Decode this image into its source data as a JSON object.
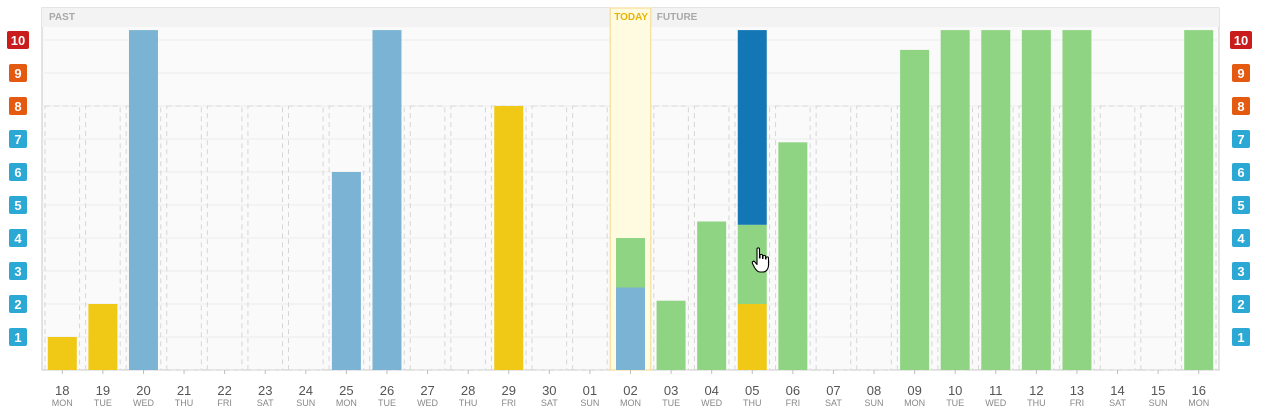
{
  "chart_data": {
    "type": "bar",
    "sections": {
      "past": "PAST",
      "today": "TODAY",
      "future": "FUTURE"
    },
    "today_index": 14,
    "ylim": [
      0,
      10.3
    ],
    "grid": true,
    "y_ticks": [
      {
        "label": "1",
        "value": 1,
        "color": "#2ba8d3"
      },
      {
        "label": "2",
        "value": 2,
        "color": "#2ba8d3"
      },
      {
        "label": "3",
        "value": 3,
        "color": "#2ba8d3"
      },
      {
        "label": "4",
        "value": 4,
        "color": "#2ba8d3"
      },
      {
        "label": "5",
        "value": 5,
        "color": "#2ba8d3"
      },
      {
        "label": "6",
        "value": 6,
        "color": "#2ba8d3"
      },
      {
        "label": "7",
        "value": 7,
        "color": "#2ba8d3"
      },
      {
        "label": "8",
        "value": 8,
        "color": "#e35a10"
      },
      {
        "label": "9",
        "value": 9,
        "color": "#e35a10"
      },
      {
        "label": "10",
        "value": 10,
        "color": "#c91d1d"
      }
    ],
    "colors": {
      "yellow": "#f0c816",
      "lightblue": "#7ab3d3",
      "green": "#8fd482",
      "darkblue": "#1277b4",
      "capacity": "#d6d6d6",
      "today_fill": "#fffbe0",
      "today_border": "#f5d68a"
    },
    "capacity": 8,
    "days": [
      {
        "num": "18",
        "name": "MON",
        "stack": [
          {
            "v": 1,
            "c": "yellow"
          }
        ]
      },
      {
        "num": "19",
        "name": "TUE",
        "stack": [
          {
            "v": 2,
            "c": "yellow"
          }
        ]
      },
      {
        "num": "20",
        "name": "WED",
        "stack": [
          {
            "v": 10.3,
            "c": "lightblue"
          }
        ]
      },
      {
        "num": "21",
        "name": "THU",
        "stack": []
      },
      {
        "num": "22",
        "name": "FRI",
        "stack": []
      },
      {
        "num": "23",
        "name": "SAT",
        "stack": []
      },
      {
        "num": "24",
        "name": "SUN",
        "stack": []
      },
      {
        "num": "25",
        "name": "MON",
        "stack": [
          {
            "v": 6,
            "c": "lightblue"
          }
        ]
      },
      {
        "num": "26",
        "name": "TUE",
        "stack": [
          {
            "v": 10.3,
            "c": "lightblue"
          }
        ]
      },
      {
        "num": "27",
        "name": "WED",
        "stack": []
      },
      {
        "num": "28",
        "name": "THU",
        "stack": []
      },
      {
        "num": "29",
        "name": "FRI",
        "stack": [
          {
            "v": 8,
            "c": "yellow"
          }
        ]
      },
      {
        "num": "30",
        "name": "SAT",
        "stack": []
      },
      {
        "num": "01",
        "name": "SUN",
        "stack": []
      },
      {
        "num": "02",
        "name": "MON",
        "stack": [
          {
            "v": 2.5,
            "c": "lightblue"
          },
          {
            "v": 1.5,
            "c": "green"
          }
        ]
      },
      {
        "num": "03",
        "name": "TUE",
        "stack": [
          {
            "v": 2.1,
            "c": "green"
          }
        ]
      },
      {
        "num": "04",
        "name": "WED",
        "stack": [
          {
            "v": 4.5,
            "c": "green"
          }
        ]
      },
      {
        "num": "05",
        "name": "THU",
        "stack": [
          {
            "v": 2,
            "c": "yellow"
          },
          {
            "v": 2.4,
            "c": "green"
          },
          {
            "v": 5.9,
            "c": "darkblue"
          }
        ]
      },
      {
        "num": "06",
        "name": "FRI",
        "stack": [
          {
            "v": 6.9,
            "c": "green"
          }
        ]
      },
      {
        "num": "07",
        "name": "SAT",
        "stack": []
      },
      {
        "num": "08",
        "name": "SUN",
        "stack": []
      },
      {
        "num": "09",
        "name": "MON",
        "stack": [
          {
            "v": 9.7,
            "c": "green"
          }
        ]
      },
      {
        "num": "10",
        "name": "TUE",
        "stack": [
          {
            "v": 10.3,
            "c": "green"
          }
        ]
      },
      {
        "num": "11",
        "name": "WED",
        "stack": [
          {
            "v": 10.3,
            "c": "green"
          }
        ]
      },
      {
        "num": "12",
        "name": "THU",
        "stack": [
          {
            "v": 10.3,
            "c": "green"
          }
        ]
      },
      {
        "num": "13",
        "name": "FRI",
        "stack": [
          {
            "v": 10.3,
            "c": "green"
          }
        ]
      },
      {
        "num": "14",
        "name": "SAT",
        "stack": []
      },
      {
        "num": "15",
        "name": "SUN",
        "stack": []
      },
      {
        "num": "16",
        "name": "MON",
        "stack": [
          {
            "v": 10.3,
            "c": "green"
          }
        ]
      }
    ]
  }
}
